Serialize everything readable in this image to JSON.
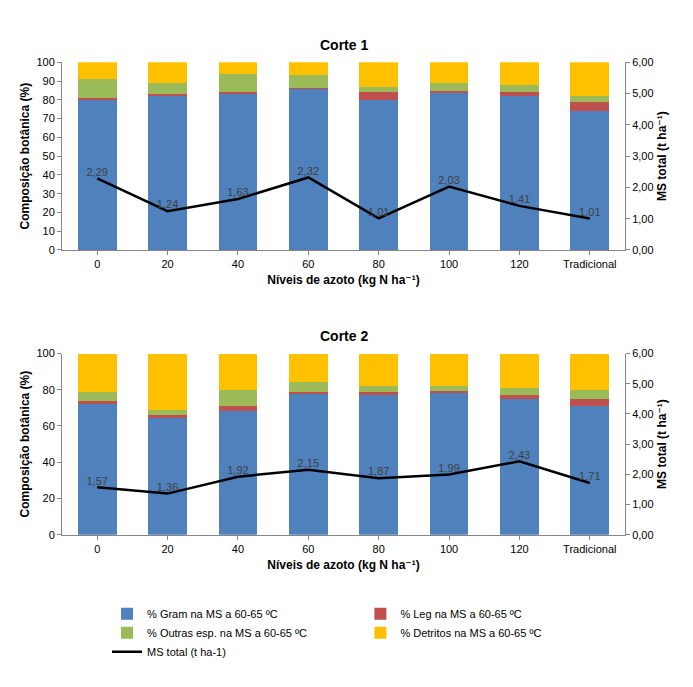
{
  "chart_data": [
    {
      "type": "bar",
      "title": "Corte 1",
      "stacked": true,
      "grid": false,
      "legend": "bottom",
      "xlabel": "Níveis de azoto (kg N ha⁻¹)",
      "ylabel": "Composição botânica (%)",
      "y2label": "MS total (t ha⁻¹)",
      "categories": [
        "0",
        "20",
        "40",
        "60",
        "80",
        "100",
        "120",
        "Tradicional"
      ],
      "ylim": [
        0,
        100
      ],
      "yticks": [
        0,
        10,
        20,
        30,
        40,
        50,
        60,
        70,
        80,
        90,
        100
      ],
      "y2lim": [
        0,
        6
      ],
      "y2ticks": [
        {
          "value": 0,
          "label": "0,00"
        },
        {
          "value": 1,
          "label": "1,00"
        },
        {
          "value": 2,
          "label": "2,00"
        },
        {
          "value": 3,
          "label": "3,00"
        },
        {
          "value": 4,
          "label": "4,00"
        },
        {
          "value": 5,
          "label": "5,00"
        },
        {
          "value": 6,
          "label": "6,00"
        }
      ],
      "series": [
        {
          "name": "% Gram na MS a 60-65 ºC",
          "color": "#4f81bd",
          "values": [
            80,
            82,
            83,
            86,
            80,
            84,
            82,
            74
          ]
        },
        {
          "name": "% Leg na MS a 60-65 ºC",
          "color": "#c0504d",
          "values": [
            1,
            1,
            1,
            0.5,
            4,
            0.5,
            2,
            5
          ]
        },
        {
          "name": "% Outras esp. na MS a 60-65 ºC",
          "color": "#9bbb59",
          "values": [
            10,
            6,
            10,
            6.5,
            3,
            4.5,
            4,
            3
          ]
        },
        {
          "name": "% Detritos na MS a 60-65 ºC",
          "color": "#ffc000",
          "values": [
            9,
            11,
            6,
            7,
            13,
            11,
            12,
            18
          ]
        },
        {
          "name": "MS total (t ha-1)",
          "type": "line",
          "axis": "y2",
          "color": "#000000",
          "line_style": "solid",
          "data_labels": true,
          "values": [
            2.29,
            1.24,
            1.63,
            2.32,
            1.01,
            2.03,
            1.41,
            1.01
          ],
          "value_labels": [
            "2,29",
            "1,24",
            "1,63",
            "2,32",
            "1,01",
            "2,03",
            "1,41",
            "1,01"
          ]
        }
      ]
    },
    {
      "type": "bar",
      "title": "Corte 2",
      "stacked": true,
      "grid": false,
      "legend": "bottom",
      "xlabel": "Níveis de azoto (kg N ha⁻¹)",
      "ylabel": "Composição botânica (%)",
      "y2label": "MS total (t ha⁻¹)",
      "categories": [
        "0",
        "20",
        "40",
        "60",
        "80",
        "100",
        "120",
        "Tradicional"
      ],
      "ylim": [
        0,
        100
      ],
      "yticks": [
        0,
        20,
        40,
        60,
        80,
        100
      ],
      "y2lim": [
        0,
        6
      ],
      "y2ticks": [
        {
          "value": 0,
          "label": "0,00"
        },
        {
          "value": 1,
          "label": "1,00"
        },
        {
          "value": 2,
          "label": "2,00"
        },
        {
          "value": 3,
          "label": "3,00"
        },
        {
          "value": 4,
          "label": "4,00"
        },
        {
          "value": 5,
          "label": "5,00"
        },
        {
          "value": 6,
          "label": "6,00"
        }
      ],
      "series": [
        {
          "name": "% Gram na MS a 60-65 ºC",
          "color": "#4f81bd",
          "values": [
            72,
            65,
            68,
            78,
            77,
            79,
            75,
            71
          ]
        },
        {
          "name": "% Leg na MS a 60-65 ºC",
          "color": "#c0504d",
          "values": [
            2,
            1,
            3,
            0.5,
            2,
            0.5,
            2,
            4
          ]
        },
        {
          "name": "% Outras esp. na MS a 60-65 ºC",
          "color": "#9bbb59",
          "values": [
            5,
            3,
            9,
            5.5,
            3,
            2.5,
            4,
            5
          ]
        },
        {
          "name": "% Detritos na MS a 60-65 ºC",
          "color": "#ffc000",
          "values": [
            21,
            31,
            20,
            16,
            18,
            18,
            19,
            20
          ]
        },
        {
          "name": "MS total (t ha-1)",
          "type": "line",
          "axis": "y2",
          "color": "#000000",
          "line_style": "solid",
          "data_labels": true,
          "values": [
            1.57,
            1.36,
            1.92,
            2.15,
            1.87,
            1.99,
            2.43,
            1.71
          ],
          "value_labels": [
            "1,57",
            "1,36",
            "1,92",
            "2,15",
            "1,87",
            "1,99",
            "2,43",
            "1,71"
          ]
        }
      ]
    }
  ]
}
